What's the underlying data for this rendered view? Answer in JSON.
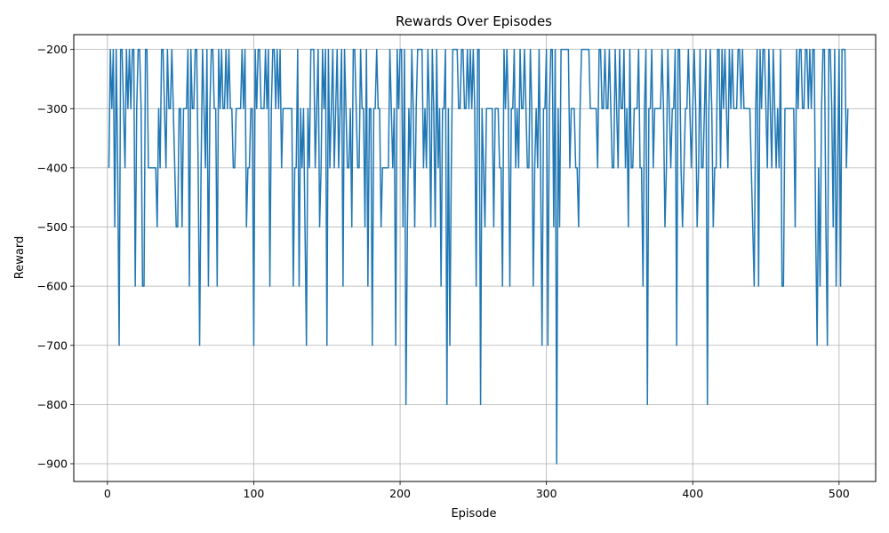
{
  "chart_data": {
    "type": "line",
    "title": "Rewards Over Episodes",
    "xlabel": "Episode",
    "ylabel": "Reward",
    "xlim": [
      -23,
      525
    ],
    "ylim": [
      -930,
      -175
    ],
    "xticks": [
      0,
      100,
      200,
      300,
      400,
      500
    ],
    "yticks": [
      -200,
      -300,
      -400,
      -500,
      -600,
      -700,
      -800,
      -900
    ],
    "xtick_labels": [
      "0",
      "100",
      "200",
      "300",
      "400",
      "500"
    ],
    "ytick_labels": [
      "−200",
      "−300",
      "−400",
      "−500",
      "−600",
      "−700",
      "−800",
      "−900"
    ],
    "grid": true,
    "line_color": "#1f77b4",
    "series": [
      {
        "values": [
          -400,
          -200,
          -300,
          -200,
          -500,
          -200,
          -400,
          -700,
          -200,
          -200,
          -300,
          -400,
          -200,
          -300,
          -200,
          -300,
          -200,
          -200,
          -600,
          -300,
          -200,
          -200,
          -300,
          -600,
          -600,
          -200,
          -200,
          -400,
          -400,
          -400,
          -400,
          -400,
          -400,
          -500,
          -300,
          -400,
          -200,
          -200,
          -300,
          -400,
          -200,
          -300,
          -300,
          -200,
          -300,
          -400,
          -500,
          -500,
          -300,
          -300,
          -500,
          -300,
          -300,
          -300,
          -200,
          -600,
          -200,
          -300,
          -300,
          -200,
          -200,
          -400,
          -700,
          -400,
          -200,
          -300,
          -400,
          -200,
          -600,
          -300,
          -200,
          -200,
          -300,
          -300,
          -600,
          -200,
          -300,
          -200,
          -300,
          -300,
          -200,
          -300,
          -200,
          -300,
          -300,
          -400,
          -400,
          -300,
          -300,
          -300,
          -300,
          -200,
          -300,
          -200,
          -500,
          -400,
          -400,
          -300,
          -300,
          -700,
          -200,
          -300,
          -200,
          -200,
          -300,
          -300,
          -300,
          -200,
          -300,
          -200,
          -600,
          -300,
          -200,
          -200,
          -300,
          -200,
          -300,
          -200,
          -400,
          -300,
          -300,
          -300,
          -300,
          -300,
          -300,
          -300,
          -600,
          -400,
          -400,
          -200,
          -600,
          -300,
          -400,
          -300,
          -500,
          -700,
          -300,
          -400,
          -200,
          -200,
          -200,
          -400,
          -300,
          -200,
          -500,
          -400,
          -200,
          -300,
          -200,
          -700,
          -200,
          -400,
          -300,
          -200,
          -400,
          -300,
          -200,
          -400,
          -300,
          -200,
          -600,
          -200,
          -300,
          -400,
          -400,
          -300,
          -500,
          -200,
          -200,
          -300,
          -400,
          -400,
          -200,
          -300,
          -300,
          -500,
          -200,
          -600,
          -300,
          -300,
          -700,
          -300,
          -300,
          -200,
          -300,
          -300,
          -500,
          -400,
          -400,
          -400,
          -400,
          -400,
          -200,
          -300,
          -400,
          -300,
          -700,
          -200,
          -300,
          -200,
          -200,
          -500,
          -200,
          -800,
          -500,
          -300,
          -400,
          -200,
          -300,
          -500,
          -300,
          -200,
          -200,
          -200,
          -200,
          -400,
          -300,
          -400,
          -200,
          -300,
          -500,
          -200,
          -300,
          -500,
          -200,
          -400,
          -300,
          -600,
          -300,
          -300,
          -200,
          -800,
          -300,
          -700,
          -400,
          -200,
          -200,
          -200,
          -200,
          -300,
          -300,
          -200,
          -200,
          -300,
          -300,
          -200,
          -300,
          -200,
          -300,
          -200,
          -300,
          -600,
          -200,
          -200,
          -800,
          -300,
          -400,
          -500,
          -300,
          -300,
          -300,
          -300,
          -300,
          -500,
          -300,
          -300,
          -300,
          -400,
          -400,
          -600,
          -200,
          -300,
          -200,
          -300,
          -600,
          -300,
          -300,
          -200,
          -400,
          -300,
          -400,
          -200,
          -300,
          -300,
          -200,
          -300,
          -400,
          -400,
          -200,
          -300,
          -600,
          -400,
          -300,
          -400,
          -200,
          -400,
          -700,
          -300,
          -300,
          -200,
          -700,
          -300,
          -200,
          -200,
          -500,
          -200,
          -900,
          -300,
          -500,
          -200,
          -200,
          -200,
          -200,
          -200,
          -200,
          -400,
          -300,
          -300,
          -300,
          -400,
          -400,
          -500,
          -300,
          -200,
          -200,
          -200,
          -200,
          -200,
          -200,
          -300,
          -300,
          -300,
          -300,
          -300,
          -400,
          -200,
          -200,
          -300,
          -300,
          -200,
          -300,
          -300,
          -200,
          -300,
          -400,
          -400,
          -200,
          -300,
          -400,
          -200,
          -300,
          -300,
          -200,
          -400,
          -300,
          -500,
          -200,
          -400,
          -400,
          -300,
          -300,
          -300,
          -200,
          -400,
          -400,
          -600,
          -300,
          -200,
          -800,
          -300,
          -300,
          -200,
          -400,
          -300,
          -300,
          -300,
          -300,
          -300,
          -200,
          -300,
          -500,
          -400,
          -200,
          -300,
          -400,
          -300,
          -300,
          -200,
          -700,
          -200,
          -200,
          -400,
          -500,
          -400,
          -300,
          -300,
          -200,
          -300,
          -400,
          -300,
          -200,
          -300,
          -500,
          -400,
          -200,
          -400,
          -400,
          -300,
          -200,
          -800,
          -300,
          -200,
          -300,
          -500,
          -400,
          -400,
          -200,
          -200,
          -400,
          -200,
          -300,
          -200,
          -300,
          -400,
          -200,
          -300,
          -200,
          -300,
          -300,
          -300,
          -200,
          -200,
          -300,
          -200,
          -300,
          -300,
          -300,
          -300,
          -300,
          -400,
          -500,
          -600,
          -300,
          -200,
          -600,
          -200,
          -300,
          -200,
          -200,
          -300,
          -400,
          -200,
          -300,
          -400,
          -200,
          -300,
          -400,
          -300,
          -400,
          -200,
          -600,
          -600,
          -300,
          -300,
          -300,
          -300,
          -300,
          -300,
          -300,
          -500,
          -200,
          -300,
          -200,
          -200,
          -300,
          -300,
          -200,
          -200,
          -300,
          -200,
          -300,
          -200,
          -200,
          -500,
          -700,
          -400,
          -600,
          -300,
          -200,
          -200,
          -500,
          -700,
          -200,
          -200,
          -300,
          -500,
          -200,
          -600,
          -400,
          -200,
          -600,
          -200,
          -200,
          -200,
          -400,
          -300
        ]
      }
    ]
  }
}
